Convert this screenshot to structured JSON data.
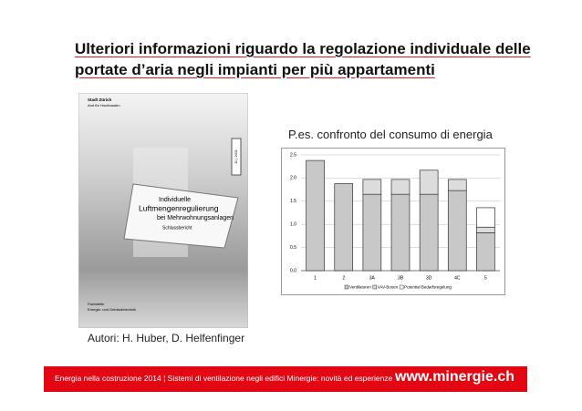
{
  "title": [
    "Ulteriori informazioni riguardo la regolazione individuale delle",
    "portate d’aria negli impianti per più appartamenti"
  ],
  "cover": {
    "org": "Stadt Zürich",
    "dept": "Amt für Hochbauten",
    "date": "11 | 2011",
    "heading": [
      "Individuelle",
      "Luftmengenregulierung",
      "bei Mehrwohnungsanlagen"
    ],
    "subtitle": "Schlussbericht",
    "footer": [
      "Fachstelle",
      "Energie- und Gebäudetechnik"
    ]
  },
  "caption": "P.es. confronto del consumo di energia",
  "chart_data": {
    "type": "stacked-bar",
    "categories": [
      "1",
      "2",
      "3A",
      "3B",
      "3D",
      "4C",
      "5"
    ],
    "series": [
      {
        "name": "Ventilatoren",
        "color": "#c8c8c8",
        "values": [
          2.38,
          1.88,
          1.65,
          1.65,
          1.65,
          1.73,
          0.82
        ]
      },
      {
        "name": "VAV-Boxen",
        "color": "#dcdcdc",
        "values": [
          null,
          null,
          0.32,
          0.32,
          0.52,
          0.24,
          0.12
        ]
      },
      {
        "name": "Potential Bedarfsregelung",
        "color": "#ffffff",
        "values": [
          null,
          null,
          null,
          null,
          null,
          null,
          0.42
        ]
      }
    ],
    "ylim": [
      0,
      2.5
    ],
    "yticks": [
      {
        "value": 0,
        "label": "0.0"
      },
      0.5,
      {
        "value": 1,
        "label": "1.0"
      },
      1.5,
      {
        "value": 2,
        "label": "2.0"
      },
      2.5
    ],
    "grid": true
  },
  "authors": "Autori: H. Huber,  D. Helfenfinger",
  "footer": {
    "text": "Energia nella costruzione 2014 ¦ Sistemi di ventilazione negli edifici Minergie: novità ed esperienze",
    "url": "www.minergie.ch"
  }
}
